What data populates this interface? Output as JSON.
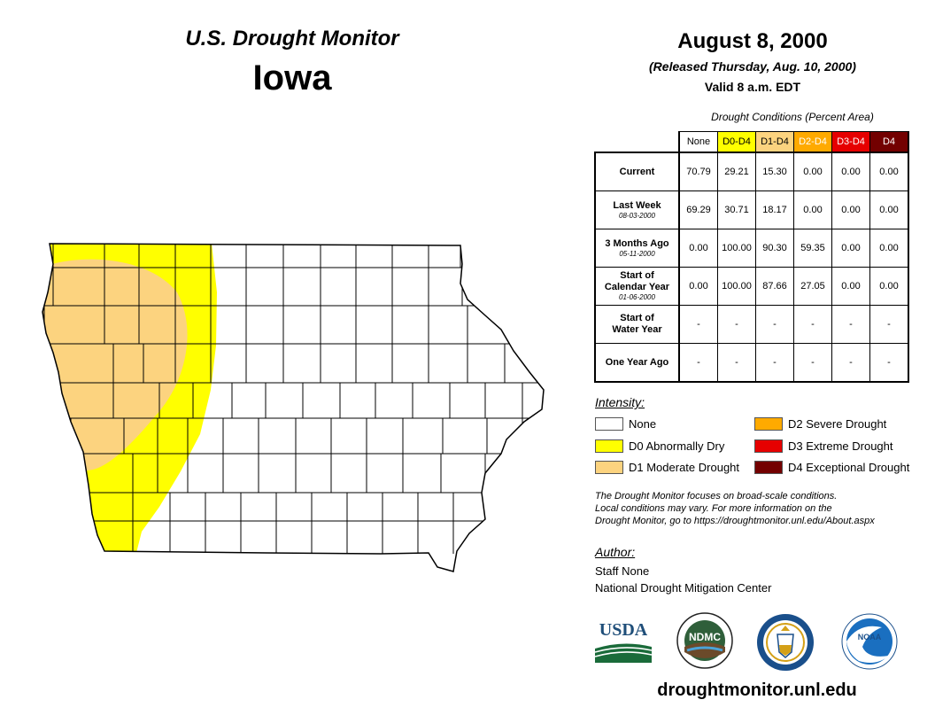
{
  "header": {
    "product": "U.S. Drought Monitor",
    "state": "Iowa",
    "date": "August 8, 2000",
    "released": "(Released Thursday, Aug. 10, 2000)",
    "valid": "Valid 8 a.m. EDT"
  },
  "table": {
    "caption": "Drought Conditions (Percent Area)",
    "columns": [
      {
        "label": "None",
        "bg": "#ffffff",
        "fg": "#000000"
      },
      {
        "label": "D0-D4",
        "bg": "#ffff00",
        "fg": "#000000"
      },
      {
        "label": "D1-D4",
        "bg": "#fcd37f",
        "fg": "#000000"
      },
      {
        "label": "D2-D4",
        "bg": "#ffaa00",
        "fg": "#ffffff"
      },
      {
        "label": "D3-D4",
        "bg": "#e60000",
        "fg": "#ffffff"
      },
      {
        "label": "D4",
        "bg": "#730000",
        "fg": "#ffffff"
      }
    ],
    "rows": [
      {
        "label": "Current",
        "label2": "",
        "date": "",
        "values": [
          "70.79",
          "29.21",
          "15.30",
          "0.00",
          "0.00",
          "0.00"
        ]
      },
      {
        "label": "Last Week",
        "label2": "",
        "date": "08-03-2000",
        "values": [
          "69.29",
          "30.71",
          "18.17",
          "0.00",
          "0.00",
          "0.00"
        ]
      },
      {
        "label": "3 Months Ago",
        "label2": "",
        "date": "05-11-2000",
        "values": [
          "0.00",
          "100.00",
          "90.30",
          "59.35",
          "0.00",
          "0.00"
        ]
      },
      {
        "label": "Start of",
        "label2": "Calendar Year",
        "date": "01-06-2000",
        "values": [
          "0.00",
          "100.00",
          "87.66",
          "27.05",
          "0.00",
          "0.00"
        ]
      },
      {
        "label": "Start of",
        "label2": "Water Year",
        "date": "",
        "values": [
          "-",
          "-",
          "-",
          "-",
          "-",
          "-"
        ]
      },
      {
        "label": "One Year Ago",
        "label2": "",
        "date": "",
        "values": [
          "-",
          "-",
          "-",
          "-",
          "-",
          "-"
        ]
      }
    ]
  },
  "legend": {
    "title": "Intensity:",
    "items": [
      {
        "label": "None",
        "color": "#ffffff"
      },
      {
        "label": "D0 Abnormally Dry",
        "color": "#ffff00"
      },
      {
        "label": "D1 Moderate Drought",
        "color": "#fcd37f"
      },
      {
        "label": "D2 Severe Drought",
        "color": "#ffaa00"
      },
      {
        "label": "D3 Extreme Drought",
        "color": "#e60000"
      },
      {
        "label": "D4 Exceptional Drought",
        "color": "#730000"
      }
    ]
  },
  "disclaimer": {
    "line1": "The Drought Monitor focuses on broad-scale conditions.",
    "line2": "Local conditions may vary. For more information on the",
    "line3": "Drought Monitor, go to https://droughtmonitor.unl.edu/About.aspx"
  },
  "author": {
    "title": "Author:",
    "name": "Staff None",
    "org": "National Drought Mitigation Center"
  },
  "logos": {
    "usda": "USDA",
    "ndmc": "NDMC",
    "noaa": "NOAA"
  },
  "website": "droughtmonitor.unl.edu",
  "map_colors": {
    "none": "#ffffff",
    "d0": "#ffff00",
    "d1": "#fcd37f",
    "county_line": "#000000"
  }
}
